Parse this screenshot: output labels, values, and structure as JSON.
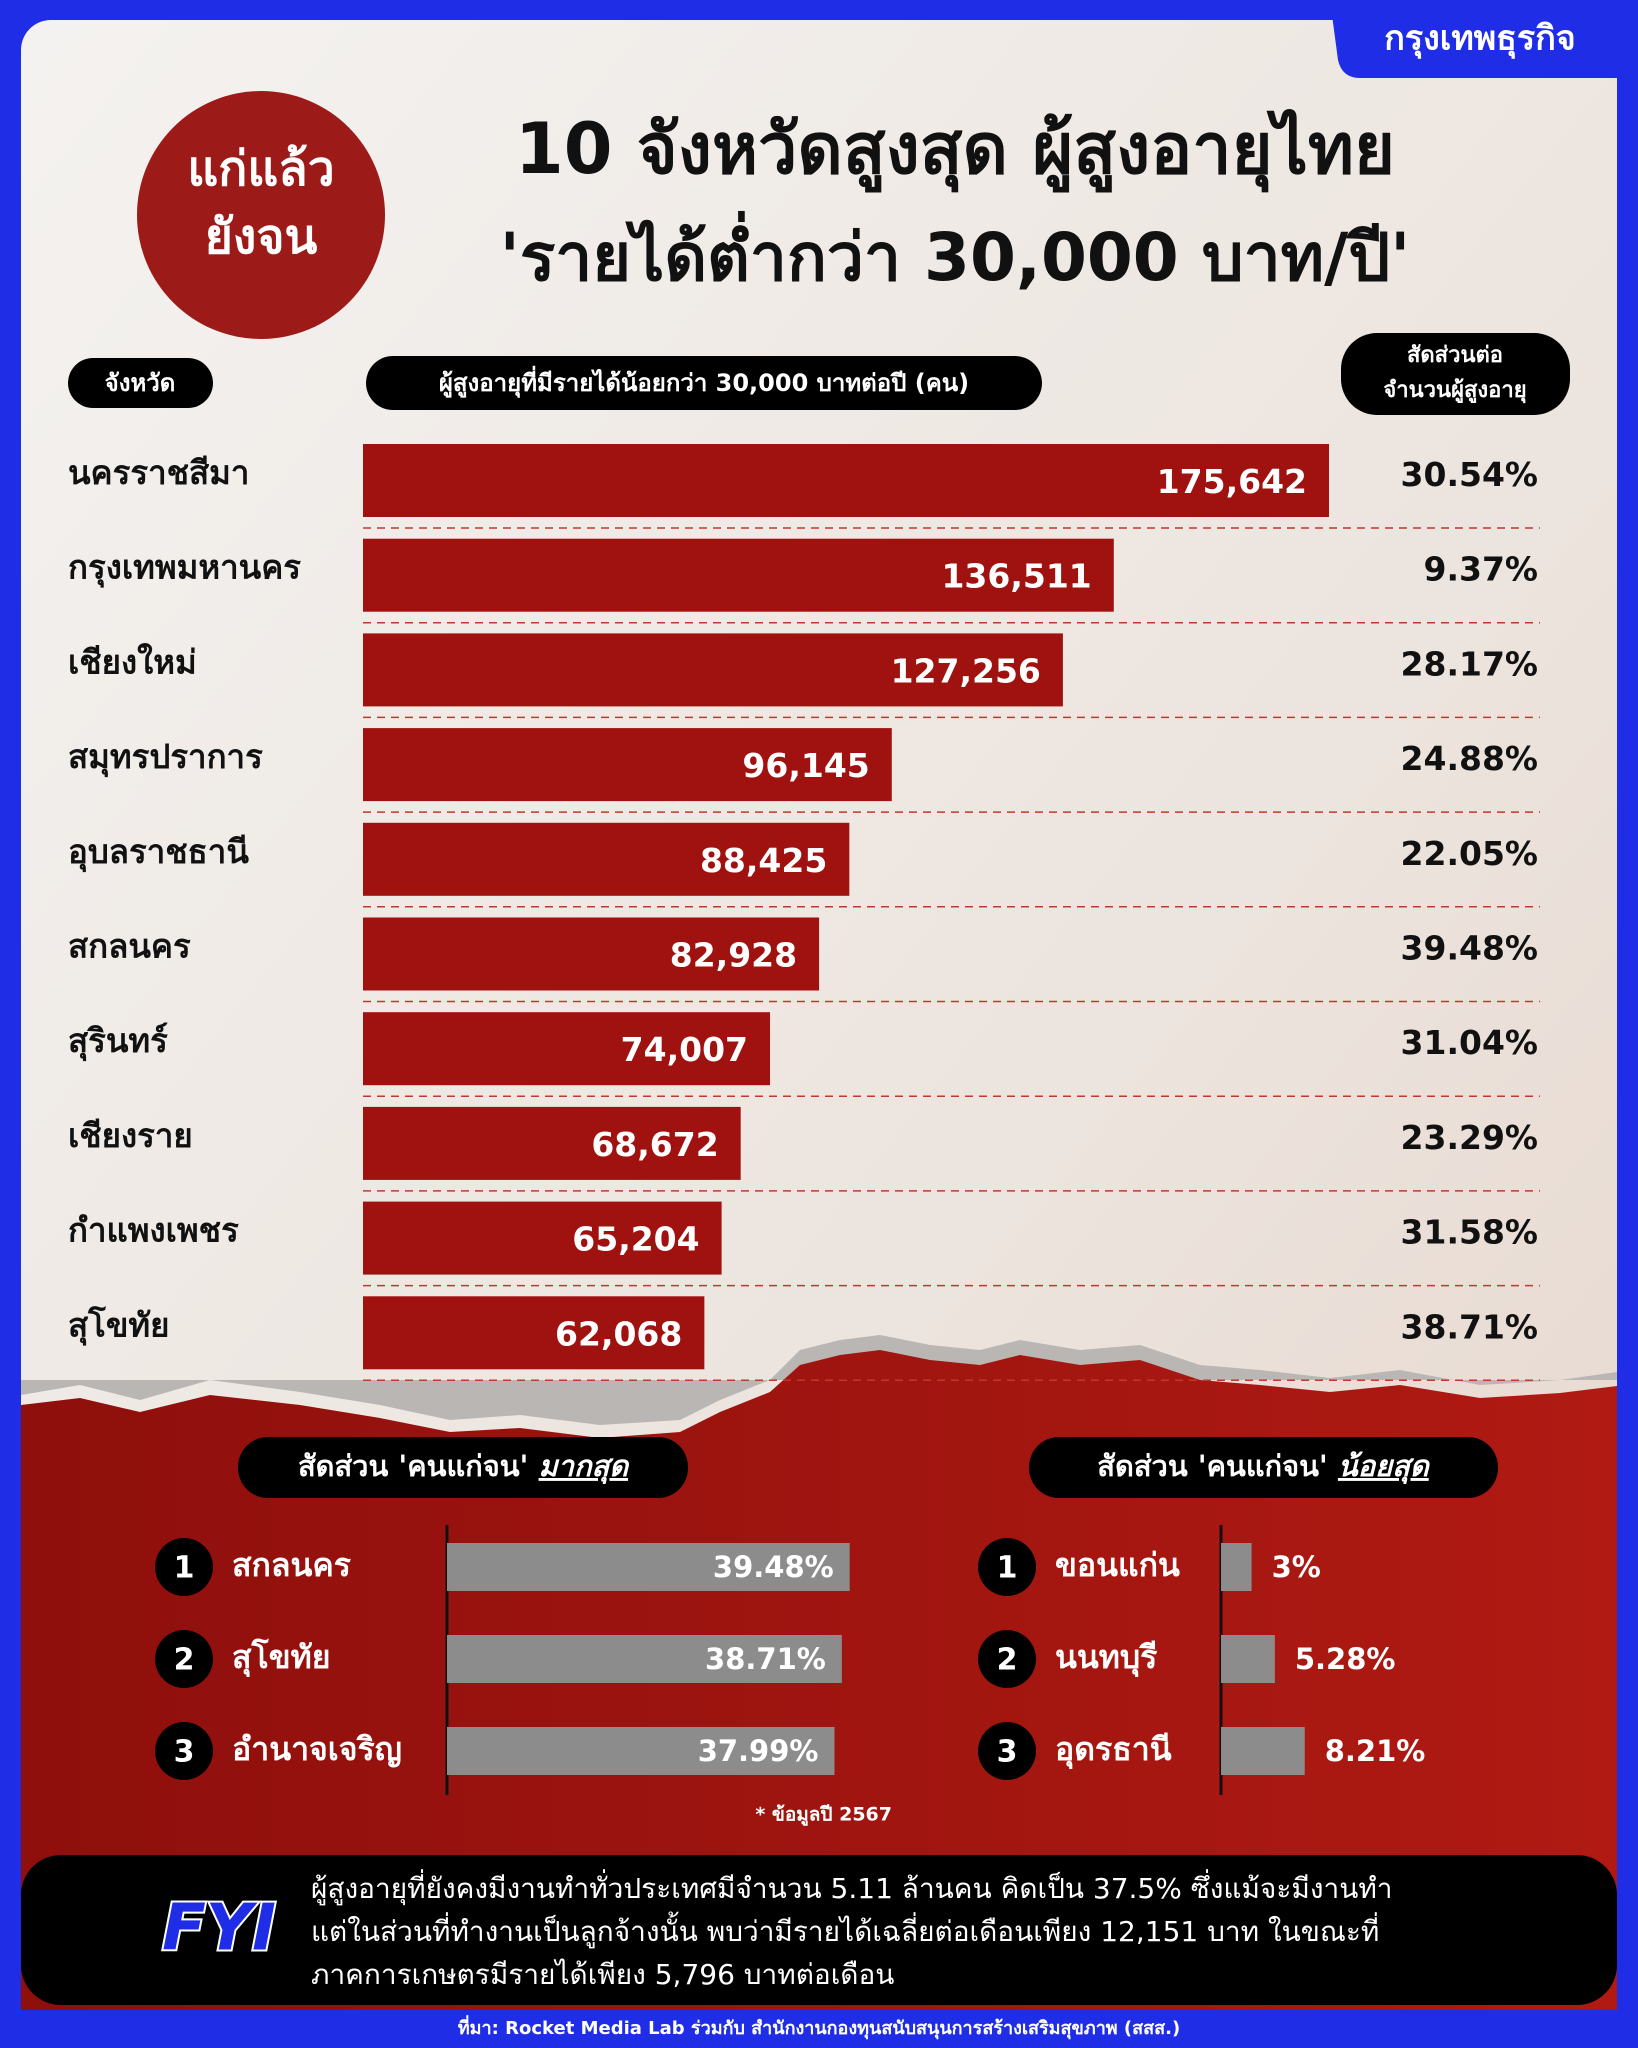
{
  "brand": "กรุงเทพธุรกิจ",
  "badge": [
    "แก่แล้ว",
    "ยังจน"
  ],
  "chart_data": [
    {
      "type": "bar",
      "orientation": "horizontal",
      "title": "10 จังหวัดสูงสุด ผู้สูงอายุไทย",
      "subtitle": "'รายได้ต่ำกว่า 30,000 บาท/ปี'",
      "category_header": "จังหวัด",
      "value_header": "ผู้สูงอายุที่มีรายได้น้อยกว่า 30,000 บาทต่อปี (คน)",
      "share_header": [
        "สัดส่วนต่อ",
        "จำนวนผู้สูงอายุ"
      ],
      "categories": [
        "นครราชสีมา",
        "กรุงเทพมหานคร",
        "เชียงใหม่",
        "สมุทรปราการ",
        "อุบลราชธานี",
        "สกลนคร",
        "สุรินทร์",
        "เชียงราย",
        "กำแพงเพชร",
        "สุโขทัย"
      ],
      "values": [
        175642,
        136511,
        127256,
        96145,
        88425,
        82928,
        74007,
        68672,
        65204,
        62068
      ],
      "value_labels": [
        "175,642",
        "136,511",
        "127,256",
        "96,145",
        "88,425",
        "82,928",
        "74,007",
        "68,672",
        "65,204",
        "62,068"
      ],
      "shares": [
        "30.54%",
        "9.37%",
        "28.17%",
        "24.88%",
        "22.05%",
        "39.48%",
        "31.04%",
        "23.29%",
        "31.58%",
        "38.71%"
      ],
      "color": "#a0120f"
    },
    {
      "type": "bar",
      "orientation": "horizontal",
      "title": "สัดส่วน 'คนแก่จน'",
      "title_emphasis": "มากสุด",
      "ranks": [
        1,
        2,
        3
      ],
      "categories": [
        "สกลนคร",
        "สุโขทัย",
        "อำนาจเจริญ"
      ],
      "values": [
        39.48,
        38.71,
        37.99
      ],
      "value_labels": [
        "39.48%",
        "38.71%",
        "37.99%"
      ],
      "label_position": "inside",
      "color": "#8c8c8c"
    },
    {
      "type": "bar",
      "orientation": "horizontal",
      "title": "สัดส่วน 'คนแก่จน'",
      "title_emphasis": "น้อยสุด",
      "ranks": [
        1,
        2,
        3
      ],
      "categories": [
        "ขอนแก่น",
        "นนทบุรี",
        "อุดรธานี"
      ],
      "values": [
        3,
        5.28,
        8.21
      ],
      "value_labels": [
        "3%",
        "5.28%",
        "8.21%"
      ],
      "label_position": "outside",
      "color": "#8c8c8c"
    }
  ],
  "footnote": "* ข้อมูลปี 2567",
  "fyi": {
    "logo": "FYI",
    "lines": [
      "ผู้สูงอายุที่ยังคงมีงานทำทั่วประเทศมีจำนวน 5.11 ล้านคน คิดเป็น 37.5% ซึ่งแม้จะมีงานทำ",
      "แต่ในส่วนที่ทำงานเป็นลูกจ้างนั้น พบว่ามีรายได้เฉลี่ยต่อเดือนเพียง 12,151 บาท ในขณะที่",
      "ภาคการเกษตรมีรายได้เพียง 5,796 บาทต่อเดือน"
    ]
  },
  "source": "ที่มา: Rocket Media Lab ร่วมกับ สำนักงานกองทุนสนับสนุนการสร้างเสริมสุขภาพ (สสส.)"
}
